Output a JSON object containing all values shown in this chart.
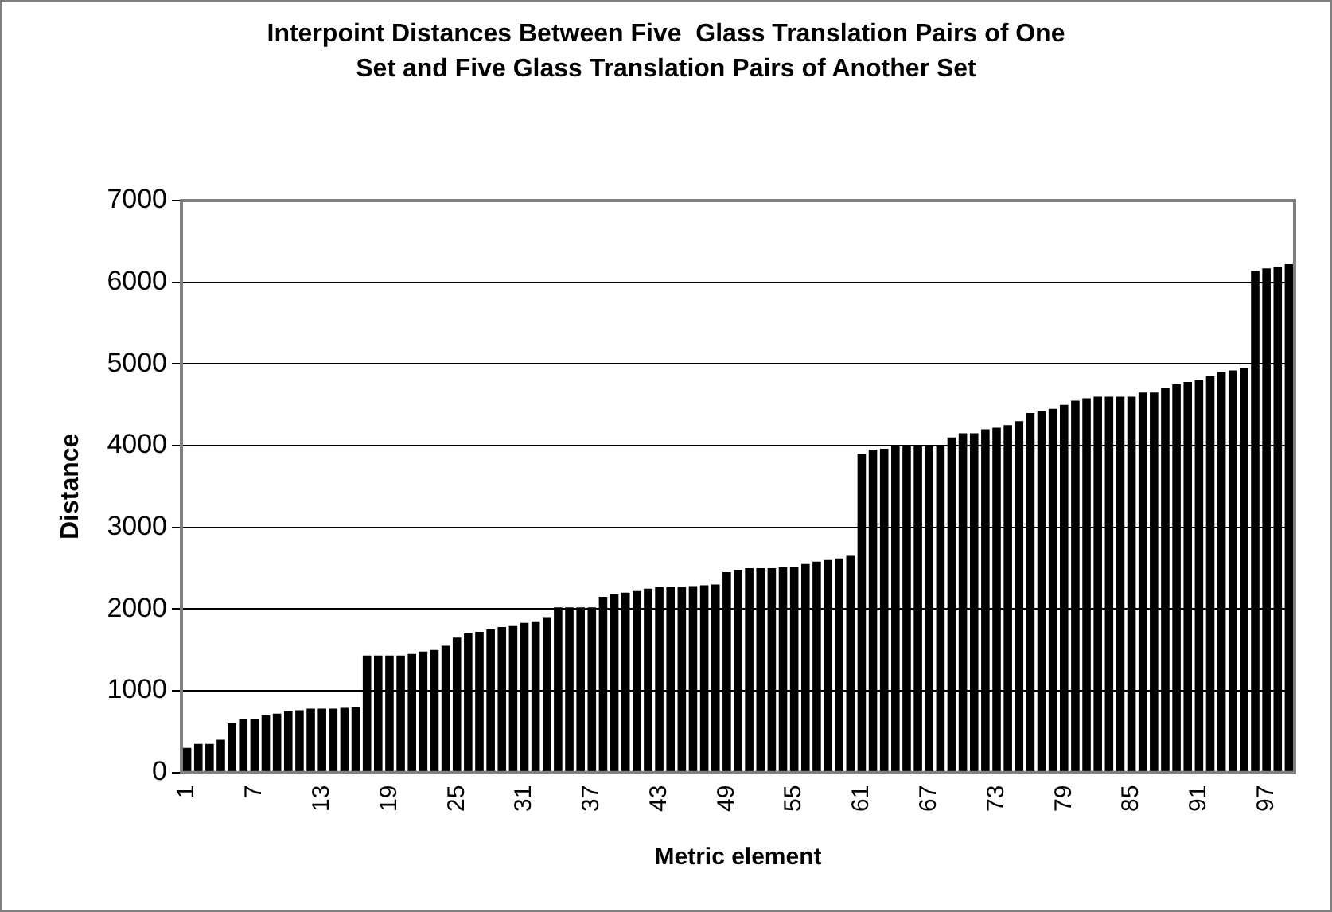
{
  "chart_data": {
    "type": "bar",
    "title": "Interpoint Distances Between Five  Glass Translation Pairs of One Set and Five Glass Translation Pairs of Another Set",
    "xlabel": "Metric element",
    "ylabel": "Distance",
    "categories": [
      "1",
      null,
      null,
      null,
      null,
      null,
      "7",
      null,
      null,
      null,
      null,
      null,
      "13",
      null,
      null,
      null,
      null,
      null,
      "19",
      null,
      null,
      null,
      null,
      null,
      "25",
      null,
      null,
      null,
      null,
      null,
      "31",
      null,
      null,
      null,
      null,
      null,
      "37",
      null,
      null,
      null,
      null,
      null,
      "43",
      null,
      null,
      null,
      null,
      null,
      "49",
      null,
      null,
      null,
      null,
      null,
      "55",
      null,
      null,
      null,
      null,
      null,
      "61",
      null,
      null,
      null,
      null,
      null,
      "67",
      null,
      null,
      null,
      null,
      null,
      "73",
      null,
      null,
      null,
      null,
      null,
      "79",
      null,
      null,
      null,
      null,
      null,
      "85",
      null,
      null,
      null,
      null,
      null,
      "91",
      null,
      null,
      null,
      null,
      null,
      "97",
      null,
      null
    ],
    "values": [
      300,
      350,
      350,
      400,
      600,
      650,
      650,
      700,
      720,
      750,
      760,
      780,
      780,
      780,
      790,
      800,
      1430,
      1430,
      1430,
      1430,
      1450,
      1480,
      1500,
      1550,
      1650,
      1700,
      1720,
      1750,
      1780,
      1800,
      1830,
      1850,
      1900,
      2020,
      2020,
      2020,
      2020,
      2150,
      2180,
      2200,
      2220,
      2250,
      2270,
      2270,
      2270,
      2280,
      2290,
      2300,
      2450,
      2480,
      2500,
      2500,
      2500,
      2510,
      2520,
      2550,
      2580,
      2600,
      2620,
      2650,
      3900,
      3950,
      3960,
      4000,
      4000,
      4000,
      4000,
      4000,
      4100,
      4150,
      4150,
      4200,
      4220,
      4250,
      4300,
      4400,
      4420,
      4450,
      4500,
      4550,
      4580,
      4600,
      4600,
      4600,
      4600,
      4650,
      4650,
      4700,
      4750,
      4780,
      4800,
      4850,
      4900,
      4920,
      4950,
      6140,
      6170,
      6190,
      6220
    ],
    "color": "#000000",
    "ylim": [
      0,
      7000
    ],
    "yticks": [
      0,
      1000,
      2000,
      3000,
      4000,
      5000,
      6000,
      7000
    ],
    "grid": "y"
  }
}
